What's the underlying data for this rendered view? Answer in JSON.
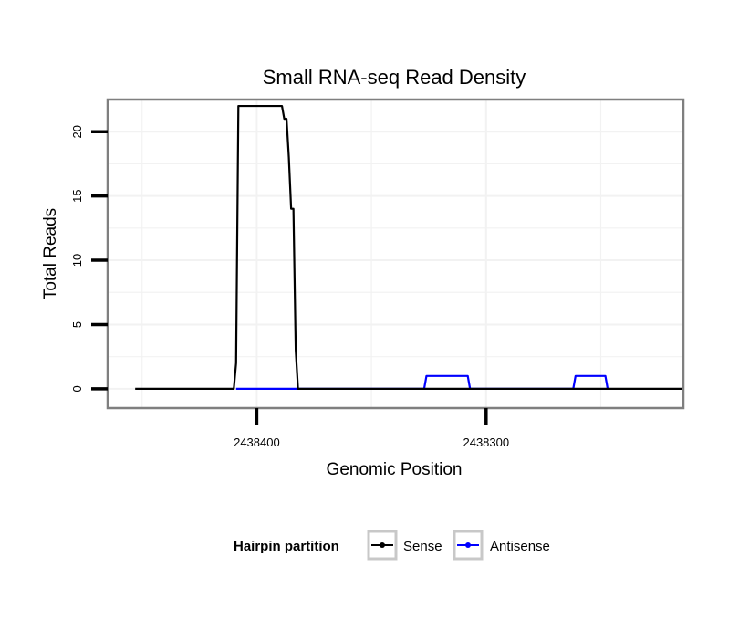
{
  "chart_data": {
    "type": "line",
    "title": "Small RNA-seq Read Density",
    "xlabel": "Genomic Position",
    "ylabel": "Total Reads",
    "x_reversed": true,
    "xlim": [
      2438465,
      2438214
    ],
    "ylim": [
      -1.5,
      22.5
    ],
    "y_ticks": [
      0,
      5,
      10,
      15,
      20
    ],
    "y_tick_labels": [
      "0",
      "5",
      "10",
      "15",
      "20"
    ],
    "x_ticks": [
      2438400,
      2438300
    ],
    "x_tick_labels": [
      "2438400",
      "2438300"
    ],
    "grid": true,
    "legend": {
      "title": "Hairpin partition",
      "position": "bottom",
      "entries": [
        {
          "label": "Sense",
          "color": "#000000"
        },
        {
          "label": "Antisense",
          "color": "#0000ff"
        }
      ]
    },
    "series": [
      {
        "name": "Sense",
        "color": "#000000",
        "x": [
          2438453,
          2438410,
          2438409,
          2438408,
          2438389,
          2438388,
          2438387,
          2438386,
          2438385,
          2438384,
          2438383,
          2438382,
          2438381,
          2438380,
          2438379,
          2438378,
          2438377,
          2438376,
          2438375,
          2438374,
          2438331,
          2438330,
          2438329,
          2438328,
          2438327,
          2438326,
          2438301,
          2438300,
          2438299,
          2438298,
          2438297,
          2438296,
          2438295,
          2438294,
          2438293,
          2438292,
          2438291,
          2438290,
          2438289,
          2438288,
          2438287,
          2438286,
          2438285,
          2438284,
          2438283,
          2438282,
          2438281,
          2438280,
          2438279,
          2438278,
          2438277,
          2438276,
          2438275,
          2438274,
          2438273,
          2438272,
          2438271,
          2438270,
          2438269,
          2438268,
          2438267,
          2438266,
          2438265,
          2438264,
          2438263,
          2438262,
          2438261,
          2438260,
          2438259,
          2438258,
          2438257,
          2438256,
          2438255,
          2438254,
          2438253,
          2438252,
          2438251,
          2438250,
          2438249,
          2438248,
          2438247,
          2438246,
          2438245,
          2438244,
          2438243,
          2438242,
          2438241,
          2438240,
          2438239,
          2438238,
          2438237,
          2438236,
          2438235,
          2438234,
          2438233,
          2438232,
          2438231,
          2438230,
          2438229,
          2438228,
          2438227,
          2438226,
          2438225,
          2438224,
          2438223,
          2438222,
          2438221,
          2438220,
          2438219,
          2438218,
          2438217,
          2438216,
          2438215,
          2438214
        ],
        "y": [
          0,
          0,
          2,
          22,
          22,
          21,
          21,
          18,
          14,
          14,
          3,
          0,
          0,
          0,
          0,
          0,
          0,
          0,
          0,
          0,
          0,
          0,
          0,
          0,
          0,
          0,
          0,
          0,
          0,
          0,
          0,
          0,
          0,
          0,
          0,
          0,
          0,
          0,
          0,
          0,
          0,
          0,
          0,
          0,
          0,
          0,
          0,
          0,
          0,
          0,
          0,
          0,
          0,
          0,
          0,
          0,
          0,
          0,
          0,
          0,
          0,
          0,
          0,
          0,
          0,
          0,
          0,
          0,
          0,
          0,
          0,
          0,
          0,
          0,
          0,
          0,
          0,
          0,
          0,
          0,
          0,
          0,
          0,
          0,
          0,
          0,
          0,
          0,
          0,
          0,
          0,
          0,
          0,
          0,
          0,
          0,
          0,
          0,
          0,
          0,
          0,
          0,
          0,
          0,
          0,
          0,
          0,
          0,
          0,
          0,
          0,
          0,
          0,
          0
        ]
      },
      {
        "name": "Antisense",
        "color": "#0000ff",
        "x": [
          2438409,
          2438383,
          2438382,
          2438327,
          2438326,
          2438308,
          2438307,
          2438262,
          2438261,
          2438248,
          2438247
        ],
        "y": [
          0,
          0,
          0,
          0,
          1,
          1,
          0,
          0,
          1,
          1,
          0
        ]
      }
    ]
  }
}
